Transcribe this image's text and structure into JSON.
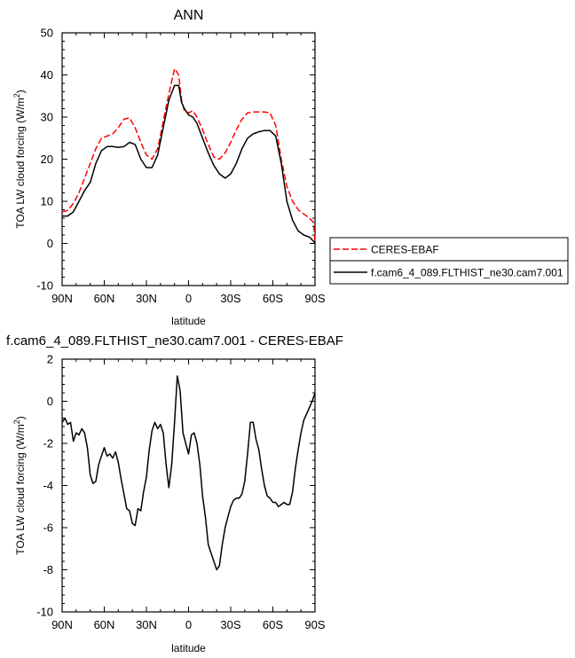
{
  "chart_data": [
    {
      "type": "line",
      "title": "ANN",
      "xlabel": "latitude",
      "ylabel": "TOA LW cloud forcing (W/m",
      "ylabel_sup": "2",
      "ylabel_end": ")",
      "xlim": [
        90,
        -90
      ],
      "ylim": [
        -10,
        50
      ],
      "x_ticks": [
        90,
        60,
        30,
        0,
        -30,
        -60,
        -90
      ],
      "x_tick_labels": [
        "90N",
        "60N",
        "30N",
        "0",
        "30S",
        "60S",
        "90S"
      ],
      "y_ticks": [
        -10,
        0,
        10,
        20,
        30,
        40,
        50
      ],
      "y_tick_labels": [
        "-10",
        "0",
        "10",
        "20",
        "30",
        "40",
        "50"
      ],
      "grid": false,
      "legend_position": "right",
      "series": [
        {
          "name": "CERES-EBAF",
          "color": "#ff0000",
          "dash": "dashed",
          "x": [
            90,
            86,
            82,
            78,
            74,
            70,
            66,
            62,
            58,
            54,
            50,
            46,
            42,
            38,
            34,
            30,
            26,
            22,
            18,
            14,
            10,
            7,
            5,
            3,
            0,
            -3,
            -6,
            -10,
            -14,
            -18,
            -22,
            -26,
            -30,
            -34,
            -38,
            -42,
            -46,
            -50,
            -54,
            -58,
            -62,
            -66,
            -70,
            -74,
            -78,
            -82,
            -86,
            -89,
            -90
          ],
          "y": [
            7.5,
            7.8,
            9.5,
            12.0,
            15.5,
            19.0,
            22.5,
            25.0,
            25.5,
            26.0,
            27.5,
            29.5,
            29.8,
            27.5,
            24.0,
            21.0,
            20.0,
            22.5,
            29.0,
            35.5,
            41.5,
            40.0,
            34.0,
            31.5,
            31.0,
            31.5,
            30.0,
            27.0,
            23.5,
            20.5,
            20.0,
            21.5,
            24.0,
            27.0,
            29.5,
            31.0,
            31.2,
            31.2,
            31.2,
            31.0,
            28.0,
            20.0,
            13.5,
            10.0,
            8.0,
            7.0,
            6.0,
            5.0,
            0.0
          ]
        },
        {
          "name": "f.cam6_4_089.FLTHIST_ne30.cam7.001",
          "color": "#000000",
          "dash": "solid",
          "x": [
            90,
            86,
            82,
            78,
            74,
            70,
            66,
            62,
            58,
            54,
            50,
            46,
            42,
            38,
            34,
            30,
            26,
            22,
            18,
            14,
            10,
            7,
            5,
            3,
            0,
            -3,
            -6,
            -10,
            -14,
            -18,
            -22,
            -26,
            -30,
            -34,
            -38,
            -42,
            -46,
            -50,
            -54,
            -58,
            -62,
            -66,
            -70,
            -74,
            -78,
            -82,
            -86,
            -89,
            -90
          ],
          "y": [
            6.5,
            6.5,
            7.5,
            10.0,
            12.5,
            14.5,
            19.0,
            22.0,
            23.0,
            23.0,
            22.8,
            23.0,
            24.0,
            23.5,
            20.0,
            18.0,
            18.0,
            21.0,
            27.5,
            34.0,
            37.5,
            37.5,
            33.5,
            32.0,
            30.5,
            30.0,
            28.5,
            25.0,
            21.5,
            18.5,
            16.5,
            15.5,
            16.5,
            19.0,
            22.5,
            25.0,
            26.0,
            26.5,
            26.8,
            26.8,
            25.5,
            19.0,
            10.0,
            5.5,
            3.0,
            2.0,
            1.5,
            0.5,
            0.0
          ]
        }
      ]
    },
    {
      "type": "line",
      "title": "f.cam6_4_089.FLTHIST_ne30.cam7.001 - CERES-EBAF",
      "xlabel": "latitude",
      "ylabel": "TOA LW cloud forcing (W/m",
      "ylabel_sup": "2",
      "ylabel_end": ")",
      "xlim": [
        90,
        -90
      ],
      "ylim": [
        -10,
        2
      ],
      "x_ticks": [
        90,
        60,
        30,
        0,
        -30,
        -60,
        -90
      ],
      "x_tick_labels": [
        "90N",
        "60N",
        "30N",
        "0",
        "30S",
        "60S",
        "90S"
      ],
      "y_ticks": [
        -10,
        -8,
        -6,
        -4,
        -2,
        0,
        2
      ],
      "y_tick_labels": [
        "-10",
        "-8",
        "-6",
        "-4",
        "-2",
        "0",
        "2"
      ],
      "grid": false,
      "series": [
        {
          "name": "",
          "color": "#000000",
          "dash": "solid",
          "x": [
            90,
            88,
            86,
            84,
            82,
            80,
            78,
            76,
            74,
            72,
            70,
            68,
            66,
            64,
            62,
            60,
            58,
            56,
            54,
            52,
            50,
            48,
            46,
            44,
            42,
            40,
            38,
            36,
            34,
            32,
            30,
            28,
            26,
            24,
            22,
            20,
            18,
            16,
            14,
            12,
            10,
            8,
            6,
            4,
            2,
            0,
            -2,
            -4,
            -6,
            -8,
            -10,
            -12,
            -14,
            -16,
            -18,
            -20,
            -22,
            -24,
            -26,
            -28,
            -30,
            -32,
            -34,
            -36,
            -38,
            -40,
            -42,
            -44,
            -46,
            -48,
            -50,
            -52,
            -54,
            -56,
            -58,
            -60,
            -62,
            -64,
            -66,
            -68,
            -70,
            -72,
            -74,
            -76,
            -78,
            -80,
            -82,
            -84,
            -86,
            -88,
            -90
          ],
          "y": [
            -1.0,
            -0.8,
            -1.1,
            -1.0,
            -1.9,
            -1.5,
            -1.6,
            -1.3,
            -1.5,
            -2.2,
            -3.5,
            -3.9,
            -3.8,
            -3.0,
            -2.6,
            -2.2,
            -2.6,
            -2.5,
            -2.7,
            -2.4,
            -2.9,
            -3.7,
            -4.4,
            -5.1,
            -5.2,
            -5.8,
            -5.9,
            -5.1,
            -5.2,
            -4.3,
            -3.6,
            -2.3,
            -1.4,
            -1.0,
            -1.3,
            -1.1,
            -1.5,
            -3.0,
            -4.1,
            -3.0,
            -1.0,
            1.2,
            0.5,
            -1.5,
            -2.0,
            -2.5,
            -1.6,
            -1.5,
            -2.0,
            -3.0,
            -4.5,
            -5.5,
            -6.8,
            -7.2,
            -7.6,
            -8.0,
            -7.8,
            -6.8,
            -6.0,
            -5.5,
            -5.0,
            -4.7,
            -4.6,
            -4.6,
            -4.4,
            -3.8,
            -2.5,
            -1.0,
            -1.0,
            -1.8,
            -2.3,
            -3.2,
            -4.0,
            -4.5,
            -4.6,
            -4.8,
            -4.8,
            -5.0,
            -4.9,
            -4.8,
            -4.9,
            -4.9,
            -4.3,
            -3.2,
            -2.3,
            -1.5,
            -0.9,
            -0.6,
            -0.3,
            0.0,
            0.4
          ]
        }
      ]
    }
  ]
}
